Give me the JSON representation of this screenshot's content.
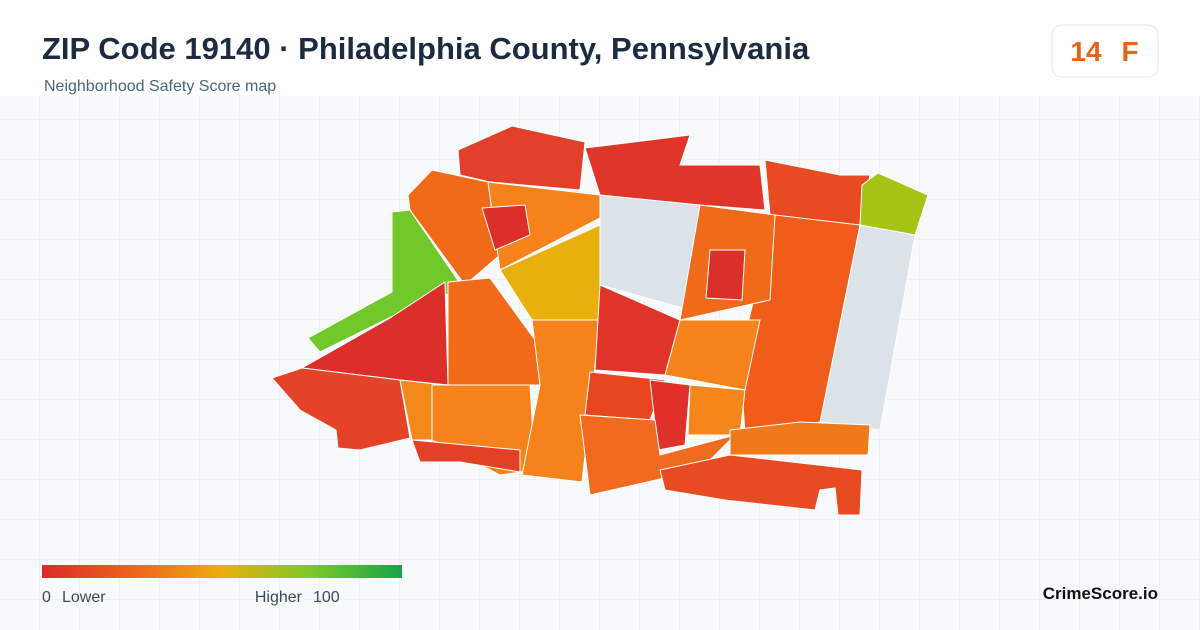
{
  "header": {
    "title": "ZIP Code 19140 · Philadelphia County, Pennsylvania",
    "subtitle": "Neighborhood Safety Score map"
  },
  "score": {
    "value": 14,
    "grade": "F"
  },
  "legend": {
    "min": 0,
    "min_label": "Lower",
    "max_label": "Higher",
    "max": 100
  },
  "brand": "CrimeScore.io"
}
